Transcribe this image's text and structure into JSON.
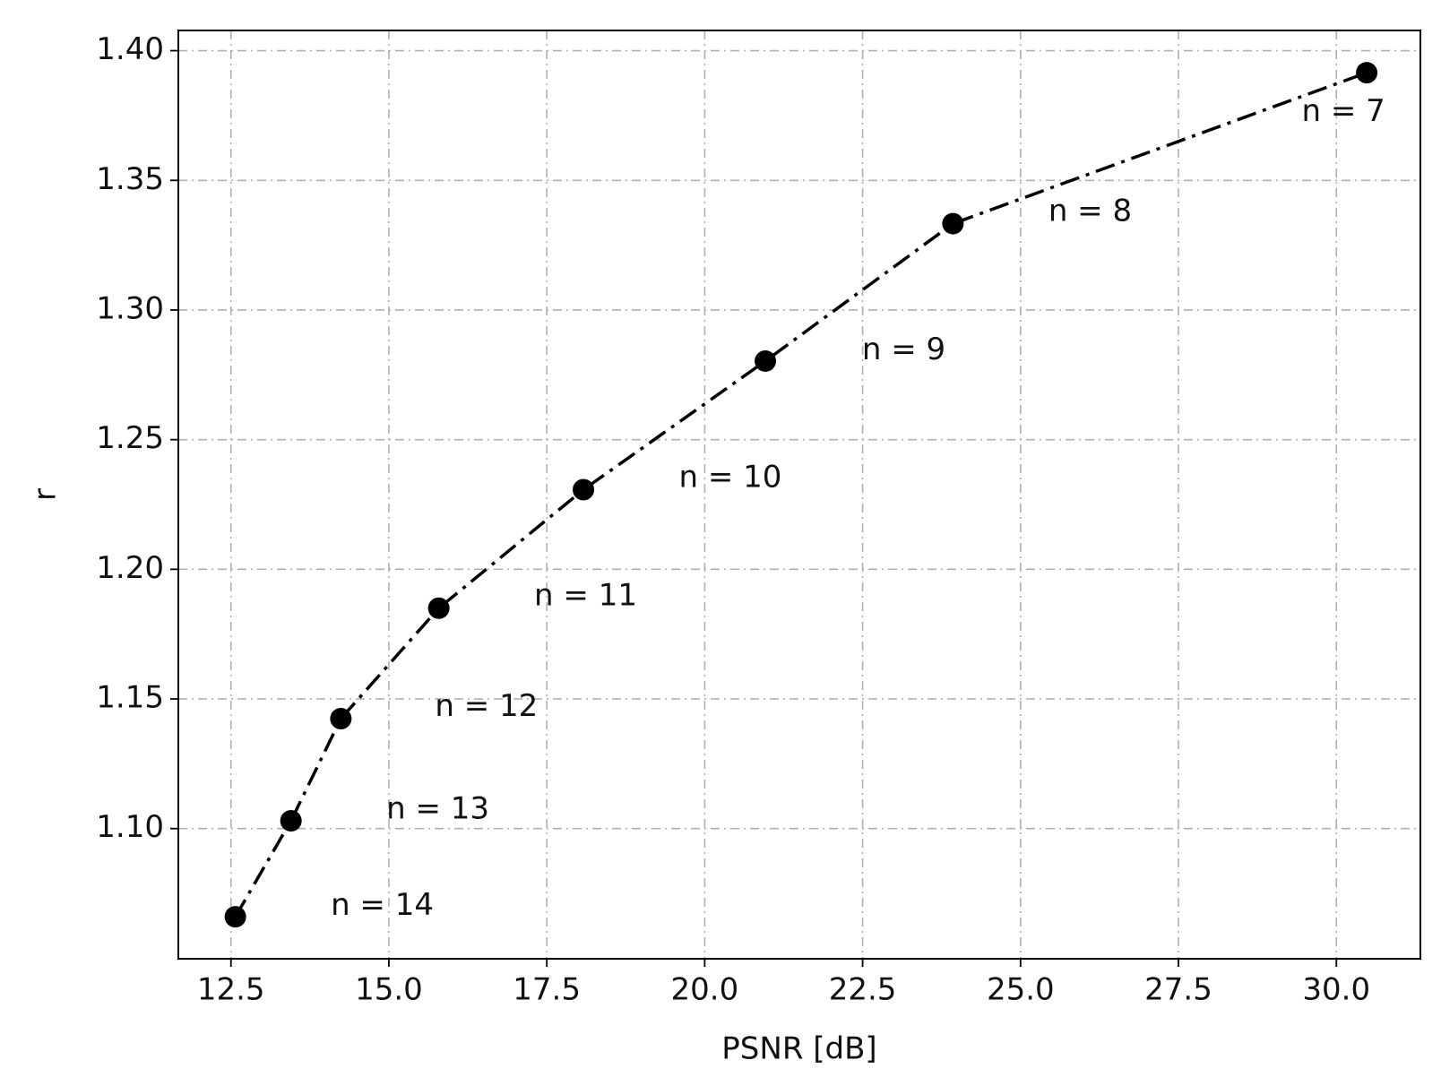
{
  "chart_data": {
    "type": "line",
    "x_label": "PSNR [dB]",
    "y_label": "r",
    "x": [
      12.57,
      13.45,
      14.24,
      15.79,
      18.08,
      20.96,
      23.93,
      30.48
    ],
    "series": [
      {
        "color": "#000000",
        "values": [
          1.066,
          1.103,
          1.1424,
          1.185,
          1.2307,
          1.2803,
          1.3333,
          1.3915
        ]
      }
    ],
    "annotations": [
      {
        "text": "n = 14",
        "x": 14.08,
        "y": 1.0701
      },
      {
        "text": "n = 13",
        "x": 14.96,
        "y": 1.1071
      },
      {
        "text": "n = 12",
        "x": 15.73,
        "y": 1.1467
      },
      {
        "text": "n = 11",
        "x": 17.3,
        "y": 1.1894
      },
      {
        "text": "n = 10",
        "x": 19.59,
        "y": 1.235
      },
      {
        "text": "n = 9",
        "x": 22.49,
        "y": 1.2843
      },
      {
        "text": "n = 8",
        "x": 25.44,
        "y": 1.3377
      },
      {
        "text": "n = 7",
        "x": 29.45,
        "y": 1.3761
      }
    ],
    "xlim": [
      11.667,
      31.33
    ],
    "ylim": [
      1.0498,
      1.4078
    ],
    "xticks": [
      12.5,
      {
        "value": 15,
        "label": "15.0"
      },
      17.5,
      {
        "value": 20,
        "label": "20.0"
      },
      22.5,
      {
        "value": 25,
        "label": "25.0"
      },
      27.5,
      {
        "value": 30,
        "label": "30.0"
      }
    ],
    "yticks": [
      {
        "value": 1.1,
        "label": "1.10"
      },
      1.15,
      {
        "value": 1.2,
        "label": "1.20"
      },
      1.25,
      {
        "value": 1.3,
        "label": "1.30"
      },
      1.35,
      {
        "value": 1.4,
        "label": "1.40"
      }
    ],
    "grid": true
  }
}
